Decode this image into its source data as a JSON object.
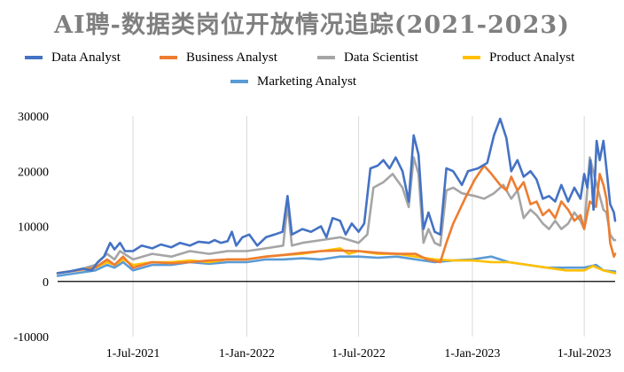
{
  "chart_data": {
    "type": "line",
    "title": "AI聘-数据类岗位开放情况追踪(2021-2023)",
    "xlabel": "",
    "ylabel": "",
    "ylim": [
      -10000,
      30000
    ],
    "y_ticks": [
      -10000,
      0,
      10000,
      20000,
      30000
    ],
    "x_range": [
      "2021-03-01",
      "2023-08-20"
    ],
    "x_ticks": [
      {
        "date": "2021-07-01",
        "label": "1-Jul-2021"
      },
      {
        "date": "2022-01-01",
        "label": "1-Jan-2022"
      },
      {
        "date": "2022-07-01",
        "label": "1-Jul-2022"
      },
      {
        "date": "2023-01-01",
        "label": "1-Jan-2023"
      },
      {
        "date": "2023-07-01",
        "label": "1-Jul-2023"
      }
    ],
    "grid": "vertical",
    "legend_position": "top",
    "series": [
      {
        "name": "Data Analyst",
        "color": "#4472c4",
        "points": [
          [
            "2021-03-01",
            1500
          ],
          [
            "2021-03-20",
            1800
          ],
          [
            "2021-04-10",
            2300
          ],
          [
            "2021-04-25",
            2000
          ],
          [
            "2021-05-05",
            3500
          ],
          [
            "2021-05-15",
            4500
          ],
          [
            "2021-05-25",
            7000
          ],
          [
            "2021-06-01",
            5800
          ],
          [
            "2021-06-10",
            7000
          ],
          [
            "2021-06-18",
            5500
          ],
          [
            "2021-07-01",
            5500
          ],
          [
            "2021-07-15",
            6500
          ],
          [
            "2021-08-01",
            6000
          ],
          [
            "2021-08-15",
            6700
          ],
          [
            "2021-09-01",
            6200
          ],
          [
            "2021-09-15",
            7000
          ],
          [
            "2021-10-01",
            6500
          ],
          [
            "2021-10-15",
            7200
          ],
          [
            "2021-11-01",
            7000
          ],
          [
            "2021-11-10",
            7500
          ],
          [
            "2021-11-20",
            7000
          ],
          [
            "2021-12-01",
            7300
          ],
          [
            "2021-12-08",
            9000
          ],
          [
            "2021-12-15",
            6500
          ],
          [
            "2021-12-25",
            8000
          ],
          [
            "2022-01-05",
            8500
          ],
          [
            "2022-01-18",
            6500
          ],
          [
            "2022-02-01",
            8000
          ],
          [
            "2022-02-15",
            8500
          ],
          [
            "2022-02-28",
            9000
          ],
          [
            "2022-03-08",
            15500
          ],
          [
            "2022-03-15",
            8500
          ],
          [
            "2022-04-01",
            9500
          ],
          [
            "2022-04-15",
            9000
          ],
          [
            "2022-05-01",
            10000
          ],
          [
            "2022-05-10",
            8000
          ],
          [
            "2022-05-20",
            11500
          ],
          [
            "2022-06-01",
            11000
          ],
          [
            "2022-06-10",
            8500
          ],
          [
            "2022-06-20",
            10500
          ],
          [
            "2022-07-01",
            9000
          ],
          [
            "2022-07-10",
            10500
          ],
          [
            "2022-07-20",
            20500
          ],
          [
            "2022-08-01",
            21000
          ],
          [
            "2022-08-10",
            22000
          ],
          [
            "2022-08-20",
            20500
          ],
          [
            "2022-08-30",
            22500
          ],
          [
            "2022-09-10",
            20000
          ],
          [
            "2022-09-20",
            14500
          ],
          [
            "2022-09-28",
            26500
          ],
          [
            "2022-10-06",
            23000
          ],
          [
            "2022-10-14",
            9500
          ],
          [
            "2022-10-22",
            12500
          ],
          [
            "2022-11-01",
            9000
          ],
          [
            "2022-11-10",
            8500
          ],
          [
            "2022-11-20",
            20500
          ],
          [
            "2022-12-01",
            20000
          ],
          [
            "2022-12-15",
            17500
          ],
          [
            "2022-12-25",
            20000
          ],
          [
            "2023-01-10",
            20500
          ],
          [
            "2023-01-25",
            21500
          ],
          [
            "2023-02-05",
            26500
          ],
          [
            "2023-02-15",
            29500
          ],
          [
            "2023-02-25",
            26000
          ],
          [
            "2023-03-05",
            20000
          ],
          [
            "2023-03-15",
            22000
          ],
          [
            "2023-03-25",
            19000
          ],
          [
            "2023-04-05",
            20000
          ],
          [
            "2023-04-15",
            18500
          ],
          [
            "2023-04-25",
            15000
          ],
          [
            "2023-05-05",
            15500
          ],
          [
            "2023-05-15",
            14500
          ],
          [
            "2023-05-25",
            17500
          ],
          [
            "2023-06-05",
            14500
          ],
          [
            "2023-06-15",
            17000
          ],
          [
            "2023-06-25",
            15000
          ],
          [
            "2023-07-01",
            19500
          ],
          [
            "2023-07-06",
            17000
          ],
          [
            "2023-07-11",
            22000
          ],
          [
            "2023-07-16",
            13000
          ],
          [
            "2023-07-21",
            25500
          ],
          [
            "2023-07-26",
            22000
          ],
          [
            "2023-08-01",
            25500
          ],
          [
            "2023-08-06",
            20500
          ],
          [
            "2023-08-12",
            14000
          ],
          [
            "2023-08-18",
            12500
          ],
          [
            "2023-08-20",
            11000
          ]
        ]
      },
      {
        "name": "Business Analyst",
        "color": "#ed7d31",
        "points": [
          [
            "2021-03-01",
            1500
          ],
          [
            "2021-04-01",
            2000
          ],
          [
            "2021-05-01",
            2500
          ],
          [
            "2021-05-20",
            4000
          ],
          [
            "2021-06-01",
            3000
          ],
          [
            "2021-06-15",
            4500
          ],
          [
            "2021-07-01",
            2500
          ],
          [
            "2021-08-01",
            3500
          ],
          [
            "2021-09-01",
            3300
          ],
          [
            "2021-10-01",
            3500
          ],
          [
            "2021-11-01",
            3800
          ],
          [
            "2021-12-01",
            4000
          ],
          [
            "2022-01-01",
            4000
          ],
          [
            "2022-02-01",
            4500
          ],
          [
            "2022-03-01",
            4800
          ],
          [
            "2022-04-01",
            5200
          ],
          [
            "2022-05-01",
            5500
          ],
          [
            "2022-06-01",
            5600
          ],
          [
            "2022-07-01",
            5500
          ],
          [
            "2022-08-01",
            5200
          ],
          [
            "2022-09-01",
            5000
          ],
          [
            "2022-10-01",
            5000
          ],
          [
            "2022-10-20",
            4000
          ],
          [
            "2022-11-10",
            3500
          ],
          [
            "2022-11-20",
            7000
          ],
          [
            "2022-12-01",
            10500
          ],
          [
            "2022-12-20",
            15000
          ],
          [
            "2023-01-05",
            18500
          ],
          [
            "2023-01-20",
            21000
          ],
          [
            "2023-02-01",
            19500
          ],
          [
            "2023-02-15",
            17500
          ],
          [
            "2023-02-25",
            16500
          ],
          [
            "2023-03-05",
            19000
          ],
          [
            "2023-03-15",
            16500
          ],
          [
            "2023-03-25",
            18000
          ],
          [
            "2023-04-05",
            14000
          ],
          [
            "2023-04-15",
            14500
          ],
          [
            "2023-04-25",
            12000
          ],
          [
            "2023-05-05",
            13000
          ],
          [
            "2023-05-15",
            11500
          ],
          [
            "2023-05-25",
            14500
          ],
          [
            "2023-06-05",
            13000
          ],
          [
            "2023-06-15",
            11000
          ],
          [
            "2023-06-25",
            12000
          ],
          [
            "2023-07-01",
            9500
          ],
          [
            "2023-07-10",
            14500
          ],
          [
            "2023-07-20",
            13500
          ],
          [
            "2023-07-26",
            19500
          ],
          [
            "2023-08-01",
            17500
          ],
          [
            "2023-08-06",
            15000
          ],
          [
            "2023-08-12",
            7000
          ],
          [
            "2023-08-18",
            4500
          ],
          [
            "2023-08-20",
            5000
          ]
        ]
      },
      {
        "name": "Data Scientist",
        "color": "#a5a5a5",
        "points": [
          [
            "2021-03-01",
            1500
          ],
          [
            "2021-04-01",
            2000
          ],
          [
            "2021-05-01",
            3000
          ],
          [
            "2021-05-20",
            5000
          ],
          [
            "2021-06-01",
            4000
          ],
          [
            "2021-06-10",
            5500
          ],
          [
            "2021-07-01",
            4000
          ],
          [
            "2021-08-01",
            5000
          ],
          [
            "2021-09-01",
            4500
          ],
          [
            "2021-10-01",
            5500
          ],
          [
            "2021-11-01",
            5000
          ],
          [
            "2021-12-01",
            5500
          ],
          [
            "2022-01-01",
            5500
          ],
          [
            "2022-02-01",
            6000
          ],
          [
            "2022-03-01",
            6500
          ],
          [
            "2022-03-08",
            14000
          ],
          [
            "2022-03-15",
            6500
          ],
          [
            "2022-04-01",
            7000
          ],
          [
            "2022-05-01",
            7500
          ],
          [
            "2022-06-01",
            8000
          ],
          [
            "2022-07-01",
            7000
          ],
          [
            "2022-07-15",
            8500
          ],
          [
            "2022-07-25",
            17000
          ],
          [
            "2022-08-10",
            18000
          ],
          [
            "2022-08-25",
            19500
          ],
          [
            "2022-09-10",
            17000
          ],
          [
            "2022-09-20",
            13500
          ],
          [
            "2022-09-28",
            22500
          ],
          [
            "2022-10-06",
            19500
          ],
          [
            "2022-10-14",
            7000
          ],
          [
            "2022-10-22",
            9500
          ],
          [
            "2022-11-01",
            7000
          ],
          [
            "2022-11-10",
            6500
          ],
          [
            "2022-11-20",
            16500
          ],
          [
            "2022-12-01",
            17000
          ],
          [
            "2022-12-15",
            16000
          ],
          [
            "2023-01-05",
            15500
          ],
          [
            "2023-01-20",
            15000
          ],
          [
            "2023-02-05",
            16000
          ],
          [
            "2023-02-20",
            17500
          ],
          [
            "2023-03-05",
            15000
          ],
          [
            "2023-03-15",
            16500
          ],
          [
            "2023-03-25",
            11500
          ],
          [
            "2023-04-05",
            13000
          ],
          [
            "2023-04-15",
            12000
          ],
          [
            "2023-04-25",
            10500
          ],
          [
            "2023-05-05",
            9500
          ],
          [
            "2023-05-15",
            11000
          ],
          [
            "2023-05-25",
            9500
          ],
          [
            "2023-06-05",
            10500
          ],
          [
            "2023-06-15",
            12500
          ],
          [
            "2023-06-25",
            11000
          ],
          [
            "2023-07-01",
            9500
          ],
          [
            "2023-07-10",
            22500
          ],
          [
            "2023-07-20",
            18000
          ],
          [
            "2023-07-26",
            15500
          ],
          [
            "2023-08-01",
            13000
          ],
          [
            "2023-08-06",
            12500
          ],
          [
            "2023-08-12",
            8500
          ],
          [
            "2023-08-18",
            7500
          ],
          [
            "2023-08-20",
            7500
          ]
        ]
      },
      {
        "name": "Product Analyst",
        "color": "#ffc000",
        "points": [
          [
            "2021-03-01",
            1500
          ],
          [
            "2021-04-01",
            2000
          ],
          [
            "2021-05-01",
            2500
          ],
          [
            "2021-05-20",
            3500
          ],
          [
            "2021-06-01",
            3000
          ],
          [
            "2021-06-15",
            4000
          ],
          [
            "2021-07-01",
            3000
          ],
          [
            "2021-08-01",
            3500
          ],
          [
            "2021-09-01",
            3500
          ],
          [
            "2021-10-01",
            3800
          ],
          [
            "2021-11-01",
            3500
          ],
          [
            "2021-12-01",
            4000
          ],
          [
            "2022-01-01",
            4000
          ],
          [
            "2022-02-01",
            4500
          ],
          [
            "2022-03-01",
            4800
          ],
          [
            "2022-04-01",
            5000
          ],
          [
            "2022-05-01",
            5500
          ],
          [
            "2022-06-01",
            6000
          ],
          [
            "2022-06-15",
            5000
          ],
          [
            "2022-07-01",
            5500
          ],
          [
            "2022-08-01",
            5000
          ],
          [
            "2022-09-01",
            5000
          ],
          [
            "2022-10-01",
            4500
          ],
          [
            "2022-11-01",
            4000
          ],
          [
            "2022-12-01",
            3800
          ],
          [
            "2023-01-01",
            3800
          ],
          [
            "2023-02-01",
            3500
          ],
          [
            "2023-03-01",
            3500
          ],
          [
            "2023-04-01",
            3000
          ],
          [
            "2023-05-01",
            2500
          ],
          [
            "2023-06-01",
            2000
          ],
          [
            "2023-07-01",
            2000
          ],
          [
            "2023-07-15",
            2800
          ],
          [
            "2023-08-01",
            2000
          ],
          [
            "2023-08-20",
            1500
          ]
        ]
      },
      {
        "name": "Marketing Analyst",
        "color": "#5b9bd5",
        "points": [
          [
            "2021-03-01",
            1000
          ],
          [
            "2021-04-01",
            1500
          ],
          [
            "2021-05-01",
            2000
          ],
          [
            "2021-05-20",
            3000
          ],
          [
            "2021-06-01",
            2500
          ],
          [
            "2021-06-15",
            3500
          ],
          [
            "2021-07-01",
            2000
          ],
          [
            "2021-08-01",
            3000
          ],
          [
            "2021-09-01",
            3000
          ],
          [
            "2021-10-01",
            3500
          ],
          [
            "2021-11-01",
            3200
          ],
          [
            "2021-12-01",
            3500
          ],
          [
            "2022-01-01",
            3500
          ],
          [
            "2022-02-01",
            4000
          ],
          [
            "2022-03-01",
            4000
          ],
          [
            "2022-04-01",
            4200
          ],
          [
            "2022-05-01",
            4000
          ],
          [
            "2022-06-01",
            4500
          ],
          [
            "2022-07-01",
            4500
          ],
          [
            "2022-08-01",
            4300
          ],
          [
            "2022-09-01",
            4500
          ],
          [
            "2022-10-01",
            4000
          ],
          [
            "2022-11-01",
            3500
          ],
          [
            "2022-12-01",
            3800
          ],
          [
            "2023-01-01",
            4000
          ],
          [
            "2023-02-01",
            4500
          ],
          [
            "2023-03-01",
            3500
          ],
          [
            "2023-04-01",
            3000
          ],
          [
            "2023-05-01",
            2500
          ],
          [
            "2023-06-01",
            2500
          ],
          [
            "2023-07-01",
            2500
          ],
          [
            "2023-07-20",
            3000
          ],
          [
            "2023-08-01",
            2000
          ],
          [
            "2023-08-20",
            1800
          ]
        ]
      }
    ]
  }
}
